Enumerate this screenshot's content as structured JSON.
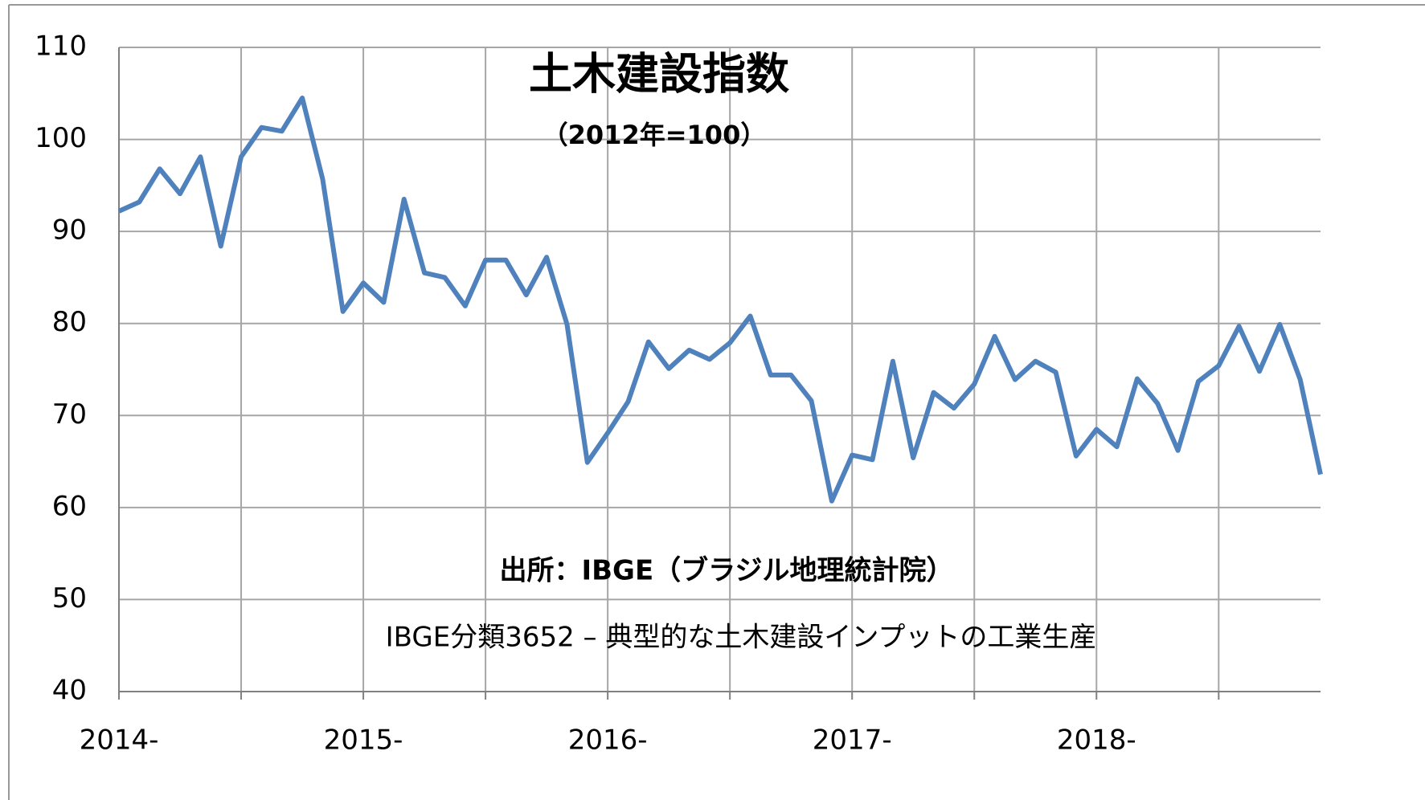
{
  "chart_data": {
    "type": "line",
    "title": "土木建設指数",
    "subtitle": "（2012年=100）",
    "annotations": [
      "出所：IBGE（ブラジル地理統計院）",
      "IBGE分類3652 – 典型的な土木建設インプットの工業生産"
    ],
    "categories": [
      "2014-",
      null,
      null,
      null,
      null,
      null,
      null,
      null,
      null,
      null,
      null,
      null,
      "2015-",
      null,
      null,
      null,
      null,
      null,
      null,
      null,
      null,
      null,
      null,
      null,
      "2016-",
      null,
      null,
      null,
      null,
      null,
      null,
      null,
      null,
      null,
      null,
      null,
      "2017-",
      null,
      null,
      null,
      null,
      null,
      null,
      null,
      null,
      null,
      null,
      null,
      "2018-",
      null,
      null,
      null,
      null,
      null,
      null,
      null,
      null,
      null,
      null,
      null
    ],
    "series": [
      {
        "color": "#4f81bd",
        "values": [
          92.2,
          93.2,
          96.8,
          94.1,
          98.1,
          88.4,
          98.1,
          101.3,
          100.9,
          104.5,
          95.7,
          81.3,
          84.4,
          82.3,
          93.5,
          85.5,
          85.0,
          81.9,
          86.9,
          86.9,
          83.1,
          87.2,
          79.9,
          64.9,
          68.1,
          71.5,
          78.0,
          75.1,
          77.1,
          76.1,
          77.9,
          80.8,
          74.4,
          74.4,
          71.6,
          60.7,
          65.7,
          65.2,
          75.9,
          65.4,
          72.5,
          70.8,
          73.4,
          78.6,
          73.9,
          75.9,
          74.7,
          65.6,
          68.5,
          66.6,
          74.0,
          71.3,
          66.2,
          73.7,
          75.4,
          79.7,
          74.8,
          79.9,
          73.9,
          63.6
        ]
      }
    ],
    "ylim": [
      40,
      110
    ],
    "yticks": [
      40,
      50,
      60,
      70,
      80,
      90,
      100,
      110
    ],
    "grid": true
  }
}
